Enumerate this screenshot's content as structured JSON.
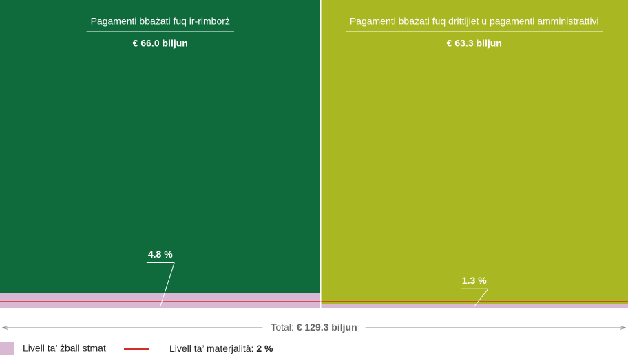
{
  "chart_data": {
    "type": "mekko",
    "categories": [
      "Pagamenti bbażati fuq ir-rimborż",
      "Pagamenti bbażati fuq drittijiet u pagamenti amministrattivi"
    ],
    "values": [
      66.0,
      63.3
    ],
    "value_labels": [
      "€ 66.0 biljun",
      "€ 63.3 biljun"
    ],
    "colors": [
      "#0f6b3c",
      "#a9b822"
    ],
    "error": {
      "name": "Livell ta’ żball stmat",
      "values": [
        4.8,
        1.3
      ],
      "value_labels": [
        "4.8 %",
        "1.3 %"
      ],
      "color": "#d9b8d4"
    },
    "materiality": {
      "name": "Livell ta’ materjalità:",
      "value": 2,
      "value_label": "2 %",
      "color": "#d62b2b"
    },
    "total": {
      "label": "Total:",
      "value": 129.3,
      "value_label": "€ 129.3 biljun"
    },
    "ylim": [
      0,
      100
    ]
  }
}
